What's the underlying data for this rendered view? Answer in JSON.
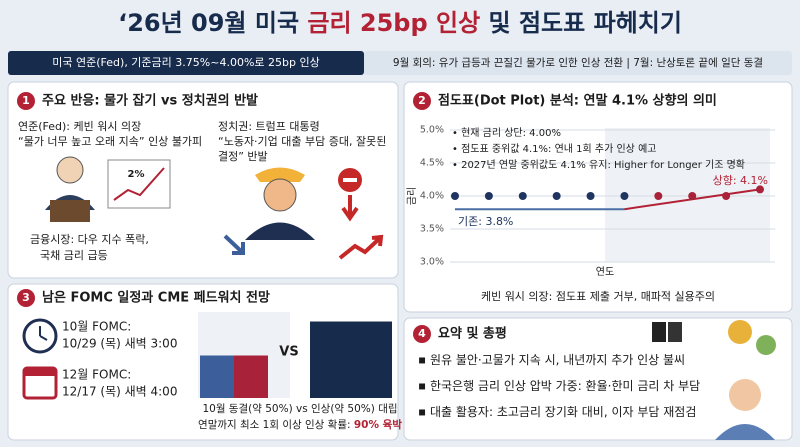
{
  "header": {
    "title_parts": [
      "‘26년 09월 미국 ",
      "금리 25bp 인상",
      " 및 점도표 파헤치기"
    ],
    "banner_left": "미국 연준(Fed), 기준금리 3.75%~4.00%로 25bp 인상",
    "banner_right": "9월 회의: 유가 급등과 끈질긴 물가로 인한 인상 전환 | 7월: 난상토론 끝에 일단 동결"
  },
  "reactions": {
    "number": "1",
    "title": "주요 반응: 물가 잡기 vs 정치권의 반발",
    "fed_label": "연준(Fed): 케빈 워시 의장",
    "fed_quote": "“물가 너무 높고 오래 지속” 인상 불가피",
    "icon_label": "2%",
    "politics_label": "정치권: 트럼프 대통령",
    "politics_quote_lines": [
      "“노동자·기업 대출 부담 증대, 잘못된",
      "결정” 반발"
    ],
    "market_lines": [
      "금융시장: 다우 지수 폭락,",
      "국채 금리 급등"
    ]
  },
  "dot_plot": {
    "number": "2",
    "title": "점도표(Dot Plot) 분석: 연말 4.1% 상향의 의미",
    "bullets": [
      "현재 금리 상단: 4.00%",
      "점도표 중위값 4.1%: 연내 1회 추가 인상 예고",
      "2027년 연말 중위값도 4.1% 유지: Higher for Longer 기조 명확"
    ],
    "footer": "케빈 워시 의장: 점도표 제출 거부, 매파적 실용주의",
    "chart_data": {
      "type": "dot",
      "y_label": "금리",
      "x_label": "연도",
      "ylim": [
        3.0,
        5.0
      ],
      "yticks": [
        {
          "value": 3.0,
          "label": "3.0%"
        },
        {
          "value": 3.5,
          "label": "3.5%"
        },
        {
          "value": 4.0,
          "label": "4.0%"
        },
        {
          "value": 4.5,
          "label": "4.5%"
        },
        {
          "value": 5.0,
          "label": "5.0%"
        }
      ],
      "grid": true,
      "xlim": [
        0,
        9
      ],
      "x": [
        0,
        1,
        2,
        3,
        4,
        5,
        6,
        7,
        8,
        9
      ],
      "series": [
        {
          "color": "#1f3560",
          "values": [
            4.0,
            4.0,
            4.0,
            4.0,
            4.0,
            4.0,
            null,
            null,
            null,
            null
          ]
        },
        {
          "color": "#a8233a",
          "values": [
            null,
            null,
            null,
            null,
            null,
            null,
            4.0,
            4.0,
            4.0,
            4.1
          ]
        }
      ],
      "lines": [
        {
          "color": "#4a6fa5",
          "x": [
            0,
            5
          ],
          "values": [
            3.8,
            3.8
          ]
        },
        {
          "color": "#b22234",
          "x": [
            5,
            9
          ],
          "values": [
            3.8,
            4.1
          ]
        }
      ],
      "annotations": [
        {
          "text": "기존: 3.8%",
          "color": "#1f3560"
        },
        {
          "text": "상향: 4.1%",
          "color": "#b22234"
        }
      ]
    }
  },
  "fomc": {
    "number": "3",
    "title": "남은 FOMC 일정과 CME 페드워치 전망",
    "meetings": [
      {
        "name": "10월 FOMC:",
        "date": "10/29 (목) 새벽 3:00"
      },
      {
        "name": "12월 FOMC:",
        "date": "12/17 (목) 새벽 4:00"
      }
    ],
    "vs": "VS",
    "caption": "10월 동결(약 50%) vs 인상(약 50%) 대립",
    "caption2_parts": [
      "연말까지 최소 1회 이상 인상 확률: ",
      "90% 육박"
    ],
    "chart_data": {
      "type": "bar",
      "ylim": [
        0,
        100
      ],
      "series": [
        {
          "color": "#3c5f9c",
          "values": [
            50
          ]
        },
        {
          "color": "#a8233a",
          "values": [
            50
          ]
        },
        {
          "color": "#172b4d",
          "values": [
            90
          ]
        }
      ]
    }
  },
  "summary": {
    "number": "4",
    "title": "요약 및 총평",
    "bullets": [
      "원유 불안·고물가 지속 시, 내년까지 추가 인상 불씨",
      "한국은행 금리 인상 압박 가중: 환율·한미 금리 차 부담",
      "대출 활용자: 초고금리 장기화 대비, 이자 부담 재점검"
    ]
  }
}
